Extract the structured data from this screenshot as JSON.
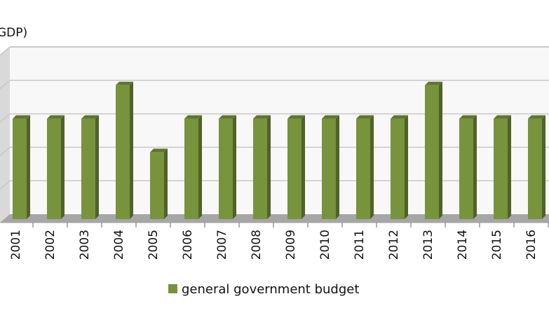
{
  "chart_data": {
    "type": "bar",
    "style": "3d-column",
    "title": "GDP)",
    "xlabel": "",
    "ylabel": "",
    "categories": [
      "2001",
      "2002",
      "2003",
      "2004",
      "2005",
      "2006",
      "2007",
      "2008",
      "2009",
      "2010",
      "2011",
      "2012",
      "2013",
      "2014",
      "2015",
      "2016"
    ],
    "series": [
      {
        "name": "general government budget",
        "color": "#77933c",
        "values": [
          3,
          3,
          3,
          4,
          2,
          3,
          3,
          3,
          3,
          3,
          3,
          3,
          4,
          3,
          3,
          3
        ]
      }
    ],
    "ylim": [
      0,
      5
    ],
    "gridlines": [
      1,
      2,
      3,
      4,
      5
    ],
    "grid": true,
    "legend_position": "bottom",
    "colors": {
      "bar_front": "#77933c",
      "bar_side": "#4f6228",
      "bar_top": "#5f7530",
      "floor": "#a6a6a6",
      "back_wall": "#f8f8f8",
      "side_wall": "#d9d9d9",
      "gridline": "#c8c8c8"
    }
  }
}
